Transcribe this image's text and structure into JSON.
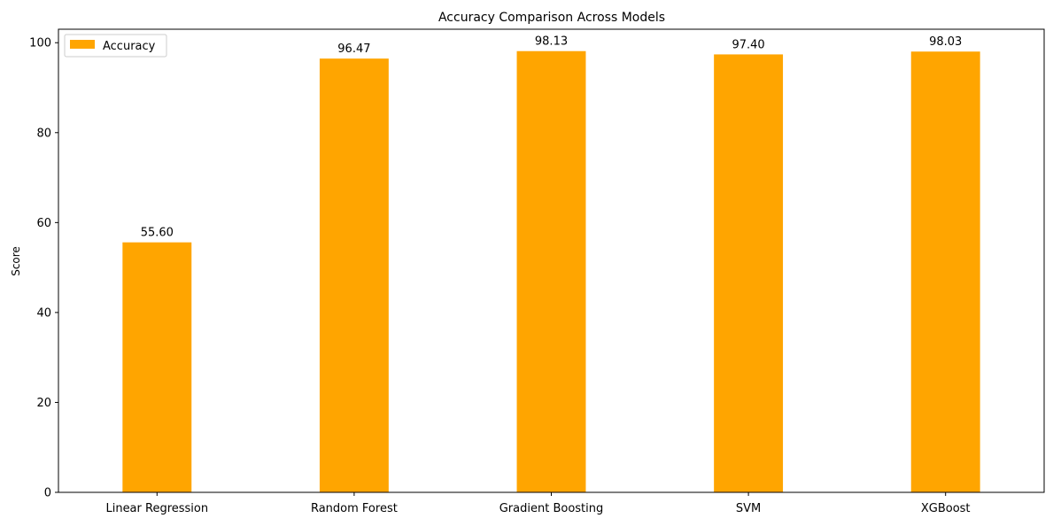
{
  "chart_data": {
    "type": "bar",
    "title": "Accuracy Comparison Across Models",
    "xlabel": "",
    "ylabel": "Score",
    "categories": [
      "Linear Regression",
      "Random Forest",
      "Gradient Boosting",
      "SVM",
      "XGBoost"
    ],
    "series": [
      {
        "name": "Accuracy",
        "values": [
          55.6,
          96.47,
          98.13,
          97.4,
          98.03
        ],
        "labels": [
          "55.60",
          "96.47",
          "98.13",
          "97.40",
          "98.03"
        ],
        "color": "#ffa500"
      }
    ],
    "ylim": [
      0,
      103
    ],
    "yticks": [
      0,
      20,
      40,
      60,
      80,
      100
    ],
    "ytick_labels": [
      "0",
      "20",
      "40",
      "60",
      "80",
      "100"
    ],
    "grid": false,
    "legend_position": "top-left"
  }
}
